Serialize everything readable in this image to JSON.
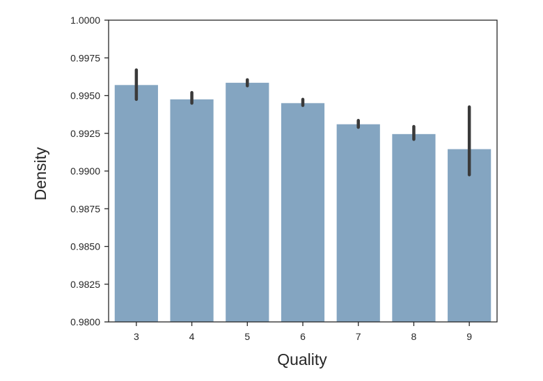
{
  "chart_data": {
    "type": "bar",
    "title": "",
    "xlabel": "Quality",
    "ylabel": "Density",
    "categories": [
      "3",
      "4",
      "5",
      "6",
      "7",
      "8",
      "9"
    ],
    "values": [
      0.9957,
      0.99475,
      0.99585,
      0.9945,
      0.9931,
      0.99245,
      0.99145
    ],
    "error_bars": [
      [
        0.99475,
        0.9967
      ],
      [
        0.9945,
        0.9952
      ],
      [
        0.99565,
        0.99605
      ],
      [
        0.99435,
        0.99475
      ],
      [
        0.9929,
        0.99335
      ],
      [
        0.9921,
        0.99295
      ],
      [
        0.98975,
        0.99425
      ]
    ],
    "ylim": [
      0.98,
      1.0
    ],
    "yticks": [
      "0.9800",
      "0.9825",
      "0.9850",
      "0.9875",
      "0.9900",
      "0.9925",
      "0.9950",
      "0.9975",
      "1.0000"
    ],
    "ytick_values": [
      0.98,
      0.9825,
      0.985,
      0.9875,
      0.99,
      0.9925,
      0.995,
      0.9975,
      1.0
    ],
    "grid": false,
    "colors": {
      "bar": "#84a5c1",
      "error_bar": "#3a3a3a",
      "axis": "#262626",
      "text": "#262626"
    }
  }
}
